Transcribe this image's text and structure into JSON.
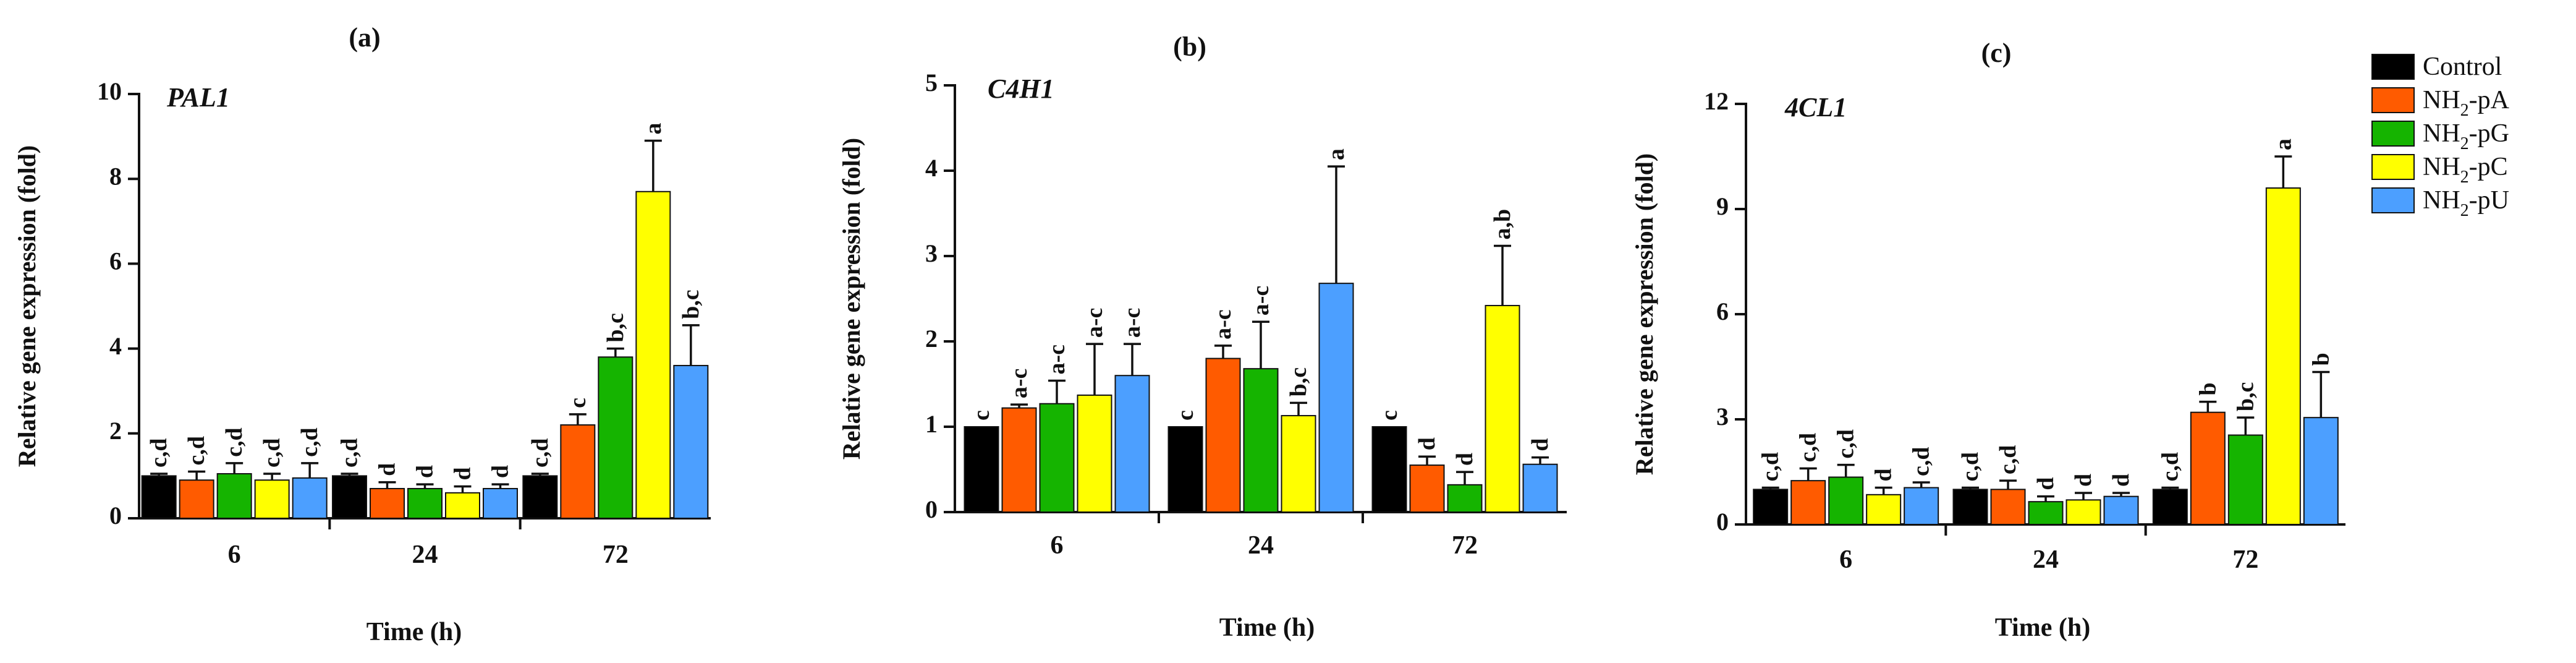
{
  "legend": [
    {
      "label": "Control",
      "sub": "",
      "suffix": "",
      "color": "#000000"
    },
    {
      "label": "NH",
      "sub": "2",
      "suffix": "-pA",
      "color": "#ff5b00"
    },
    {
      "label": "NH",
      "sub": "2",
      "suffix": "-pG",
      "color": "#15b400"
    },
    {
      "label": "NH",
      "sub": "2",
      "suffix": "-pC",
      "color": "#ffff00"
    },
    {
      "label": "NH",
      "sub": "2",
      "suffix": "-pU",
      "color": "#4c9fff"
    }
  ],
  "chart_data": [
    {
      "panel": "(a)",
      "gene": "PAL1",
      "type": "bar",
      "xlabel": "Time (h)",
      "ylabel": "Relative gene expression (fold)",
      "categories": [
        "6",
        "24",
        "72"
      ],
      "ylim": [
        0,
        10
      ],
      "yticks": [
        0,
        2,
        4,
        6,
        8,
        10
      ],
      "series": [
        {
          "name": "Control",
          "values": [
            1.0,
            1.0,
            1.0
          ],
          "errors": [
            0.05,
            0.05,
            0.05
          ],
          "letters": [
            "c,d",
            "c,d",
            "c,d"
          ]
        },
        {
          "name": "NH2-pA",
          "values": [
            0.9,
            0.7,
            2.2
          ],
          "errors": [
            0.2,
            0.15,
            0.25
          ],
          "letters": [
            "c,d",
            "d",
            "c"
          ]
        },
        {
          "name": "NH2-pG",
          "values": [
            1.05,
            0.7,
            3.8
          ],
          "errors": [
            0.25,
            0.1,
            0.2
          ],
          "letters": [
            "c,d",
            "d",
            "b,c"
          ]
        },
        {
          "name": "NH2-pC",
          "values": [
            0.9,
            0.6,
            7.7
          ],
          "errors": [
            0.15,
            0.15,
            1.2
          ],
          "letters": [
            "c,d",
            "d",
            "a"
          ]
        },
        {
          "name": "NH2-pU",
          "values": [
            0.95,
            0.7,
            3.6
          ],
          "errors": [
            0.35,
            0.1,
            0.95
          ],
          "letters": [
            "c,d",
            "d",
            "b,c"
          ]
        }
      ]
    },
    {
      "panel": "(b)",
      "gene": "C4H1",
      "type": "bar",
      "xlabel": "Time (h)",
      "ylabel": "Relative gene expression (fold)",
      "categories": [
        "6",
        "24",
        "72"
      ],
      "ylim": [
        0,
        5
      ],
      "yticks": [
        0,
        1,
        2,
        3,
        4,
        5
      ],
      "series": [
        {
          "name": "Control",
          "values": [
            1.0,
            1.0,
            1.0
          ],
          "errors": [
            0.0,
            0.0,
            0.0
          ],
          "letters": [
            "c",
            "c",
            "c"
          ]
        },
        {
          "name": "NH2-pA",
          "values": [
            1.22,
            1.8,
            0.55
          ],
          "errors": [
            0.04,
            0.15,
            0.1
          ],
          "letters": [
            "a-c",
            "a-c",
            "d"
          ]
        },
        {
          "name": "NH2-pG",
          "values": [
            1.27,
            1.68,
            0.32
          ],
          "errors": [
            0.27,
            0.55,
            0.15
          ],
          "letters": [
            "a-c",
            "a-c",
            "d"
          ]
        },
        {
          "name": "NH2-pC",
          "values": [
            1.37,
            1.13,
            2.42
          ],
          "errors": [
            0.6,
            0.15,
            0.7
          ],
          "letters": [
            "a-c",
            "b,c",
            "a,b"
          ]
        },
        {
          "name": "NH2-pU",
          "values": [
            1.6,
            2.68,
            0.56
          ],
          "errors": [
            0.37,
            1.37,
            0.08
          ],
          "letters": [
            "a-c",
            "a",
            "d"
          ]
        }
      ]
    },
    {
      "panel": "(c)",
      "gene": "4CL1",
      "type": "bar",
      "xlabel": "Time (h)",
      "ylabel": "Relative gene expression (fold)",
      "categories": [
        "6",
        "24",
        "72"
      ],
      "ylim": [
        0,
        12
      ],
      "yticks": [
        0,
        3,
        6,
        9,
        12
      ],
      "series": [
        {
          "name": "Control",
          "values": [
            1.0,
            1.0,
            1.0
          ],
          "errors": [
            0.05,
            0.05,
            0.05
          ],
          "letters": [
            "c,d",
            "c,d",
            "c,d"
          ]
        },
        {
          "name": "NH2-pA",
          "values": [
            1.25,
            1.0,
            3.2
          ],
          "errors": [
            0.35,
            0.25,
            0.3
          ],
          "letters": [
            "c,d",
            "c,d",
            "b"
          ]
        },
        {
          "name": "NH2-pG",
          "values": [
            1.35,
            0.65,
            2.55
          ],
          "errors": [
            0.35,
            0.15,
            0.5
          ],
          "letters": [
            "c,d",
            "d",
            "b,c"
          ]
        },
        {
          "name": "NH2-pC",
          "values": [
            0.85,
            0.7,
            9.6
          ],
          "errors": [
            0.2,
            0.2,
            0.9
          ],
          "letters": [
            "d",
            "d",
            "a"
          ]
        },
        {
          "name": "NH2-pU",
          "values": [
            1.05,
            0.8,
            3.05
          ],
          "errors": [
            0.15,
            0.1,
            1.3
          ],
          "letters": [
            "c,d",
            "d",
            "b"
          ]
        }
      ]
    }
  ]
}
